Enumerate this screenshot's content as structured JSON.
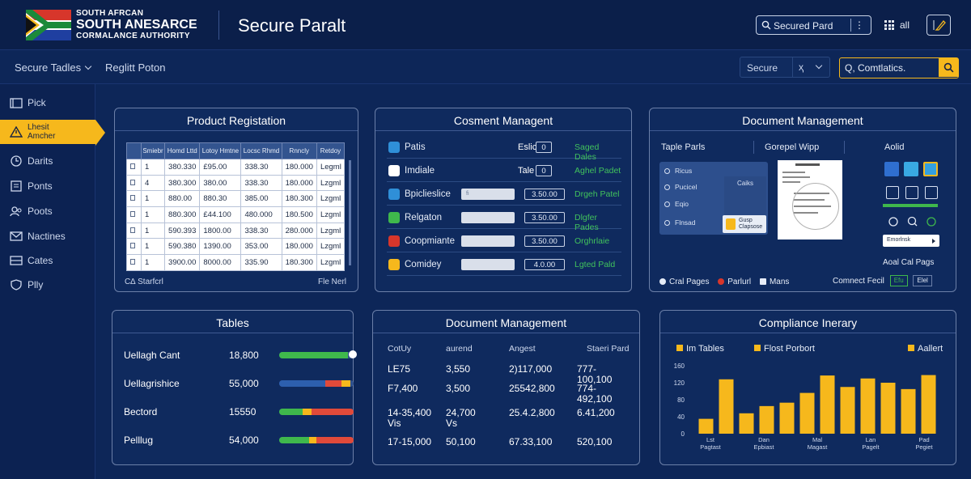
{
  "header": {
    "org_line1": "SOUTH AFRCAN",
    "org_line2": "SOUTH ANESARCE",
    "org_line3": "CORMALANCE AUTHORITY",
    "app_title": "Secure Paralt",
    "search_value": "Secured Pard",
    "kebab": "⋮",
    "all_label": "all",
    "flag_colors": {
      "green": "#1b8a3a",
      "gold": "#f6b81c",
      "black": "#111111",
      "white": "#ffffff",
      "blue": "#1f3fa0",
      "red": "#d7362b"
    }
  },
  "subnav": {
    "item1": "Secure Tadles",
    "item2": "Reglitt Poton",
    "select_value": "Secure",
    "select_alt": "ҳ",
    "compliance_search": "Q, Comtlatics."
  },
  "sidebar": {
    "items": [
      {
        "label": "Pick",
        "icon": "folder-icon"
      },
      {
        "label": "Lhesit Amcher",
        "icon": "warning-icon"
      },
      {
        "label": "Darits",
        "icon": "clock-icon"
      },
      {
        "label": "Ponts",
        "icon": "document-icon"
      },
      {
        "label": "Poots",
        "icon": "people-icon"
      },
      {
        "label": "Nactines",
        "icon": "mail-icon"
      },
      {
        "label": "Cates",
        "icon": "tray-icon"
      },
      {
        "label": "Plly",
        "icon": "shield-icon"
      }
    ]
  },
  "product_registration": {
    "title": "Product Registation",
    "headers": [
      "",
      "Smiebr",
      "Homd Lttd",
      "Lotoy Hmtne",
      "Locsc Rhmd",
      "Rnncly",
      "Retdoy"
    ],
    "rows": [
      [
        "1",
        "380.330",
        "£95.00",
        "338.30",
        "180.000",
        "Legml"
      ],
      [
        "4",
        "380.300",
        "380.00",
        "338.30",
        "180.000",
        "Lzgml"
      ],
      [
        "1",
        "880.00",
        "880.30",
        "385.00",
        "180.300",
        "Lzgml"
      ],
      [
        "1",
        "880.300",
        "£44.100",
        "480.000",
        "180.500",
        "Lzgml"
      ],
      [
        "1",
        "590.393",
        "1800.00",
        "338.30",
        "280.000",
        "Lzgml"
      ],
      [
        "1",
        "590.380",
        "1390.00",
        "353.00",
        "180.000",
        "Lzgml"
      ],
      [
        "1",
        "3900.00",
        "8000.00",
        "335.90",
        "180.300",
        "Lzgml"
      ]
    ],
    "footer_left": "C∆ Starfcrl",
    "footer_right": "Fle Nerl"
  },
  "consent_management": {
    "title": "Cosment Managent",
    "rows": [
      {
        "name": "Patis",
        "label": "Eslic",
        "value": "0",
        "status": "Saged Dales",
        "icon_color": "#2f8fd8"
      },
      {
        "name": "Imdiale",
        "label": "Tale",
        "value": "0",
        "status": "Aghel Padet",
        "icon_color": "#ffffff"
      },
      {
        "name": "Bpiclieslice",
        "bar": "fi",
        "value": "3.50.00",
        "status": "Drgeh Patel",
        "icon_color": "#2f8fd8"
      },
      {
        "name": "Relgaton",
        "bar": "",
        "value": "3.50.00",
        "status": "Dlgfer Pades",
        "icon_color": "#3fb84c"
      },
      {
        "name": "Coopmiante",
        "bar": "",
        "value": "3.50.00",
        "status": "Orghrlaie",
        "icon_color": "#d7362b"
      },
      {
        "name": "Comidey",
        "bar": "",
        "value": "4.0.00",
        "status": "Lgted Pald",
        "icon_color": "#f6b81c"
      }
    ]
  },
  "document_management_top": {
    "title": "Document Management",
    "col1": "Taple Parls",
    "col2": "Gorepel Wipp",
    "col3": "Aolid",
    "list_items": [
      "Ricus",
      "Pucicel",
      "Eqio",
      "Flnsad"
    ],
    "sub_title": "Caiks",
    "chip_text": "Gusp Clapsose",
    "select_text": "Emorlnsk",
    "right_label": "Aoal Cal Pags",
    "legend": [
      {
        "label": "Cral Pages",
        "color": "#e6ecf7"
      },
      {
        "label": "Parlurl",
        "color": "#d7362b"
      },
      {
        "label": "Mans",
        "color": "#e6ecf7"
      }
    ],
    "foot_label": "Comnect Fecil",
    "foot_box1": "Efu",
    "foot_box2": "Elel"
  },
  "tables_panel": {
    "title": "Tables",
    "rows": [
      {
        "name": "Uellagh Cant",
        "value": "18,800",
        "segments": [
          {
            "w": 0.92,
            "color": "#3fb84c"
          }
        ],
        "knob": true
      },
      {
        "name": "Uellagrishice",
        "value": "55,000",
        "segments": [
          {
            "w": 0.62,
            "color": "#2d5fae"
          },
          {
            "w": 0.22,
            "color": "#e04a3a"
          },
          {
            "w": 0.12,
            "color": "#f6b81c"
          }
        ],
        "knob": false
      },
      {
        "name": "Bectord",
        "value": "15550",
        "segments": [
          {
            "w": 0.32,
            "color": "#3fb84c"
          },
          {
            "w": 0.12,
            "color": "#f6b81c"
          },
          {
            "w": 0.56,
            "color": "#e04a3a"
          }
        ],
        "knob": false
      },
      {
        "name": "Pelllug",
        "value": "54,000",
        "segments": [
          {
            "w": 0.4,
            "color": "#3fb84c"
          },
          {
            "w": 0.1,
            "color": "#f6b81c"
          },
          {
            "w": 0.5,
            "color": "#e04a3a"
          }
        ],
        "knob": false
      }
    ]
  },
  "document_management_bottom": {
    "title": "Document Management",
    "headers": [
      "CotUy",
      "aurend",
      "Angest",
      "Staeri Pard"
    ],
    "rows": [
      [
        "LE75",
        "3,550",
        "2)117,000",
        "777-100,100"
      ],
      [
        "F7,400",
        "3,500",
        "25542,800",
        "774-492,100"
      ],
      [
        "14-35,400 Vis",
        "24,700 Vs",
        "25.4.2,800",
        "6.41,200"
      ],
      [
        "17-15,000",
        "50,100",
        "67.33,100",
        "520,100"
      ]
    ]
  },
  "compliance_itinerary": {
    "title": "Compliance Inerary",
    "legend": [
      {
        "label": "Im Tables",
        "color": "#f6b81c"
      },
      {
        "label": "Flost Porbort",
        "color": "#f6b81c"
      },
      {
        "label": "Aallert",
        "color": "#f6b81c"
      }
    ]
  },
  "chart_data": {
    "type": "bar",
    "title": "Compliance Inerary",
    "y_ticks": [
      "160",
      "120",
      "80",
      "40",
      "0"
    ],
    "ylim": [
      0,
      160
    ],
    "x_labels": [
      "Lst Pagtast",
      "Dan Epbiast",
      "Mal Magast",
      "Lan Pagelt",
      "Pad Pegiet"
    ],
    "values": [
      35,
      128,
      48,
      65,
      73,
      96,
      137,
      110,
      130,
      120,
      105,
      138
    ]
  }
}
